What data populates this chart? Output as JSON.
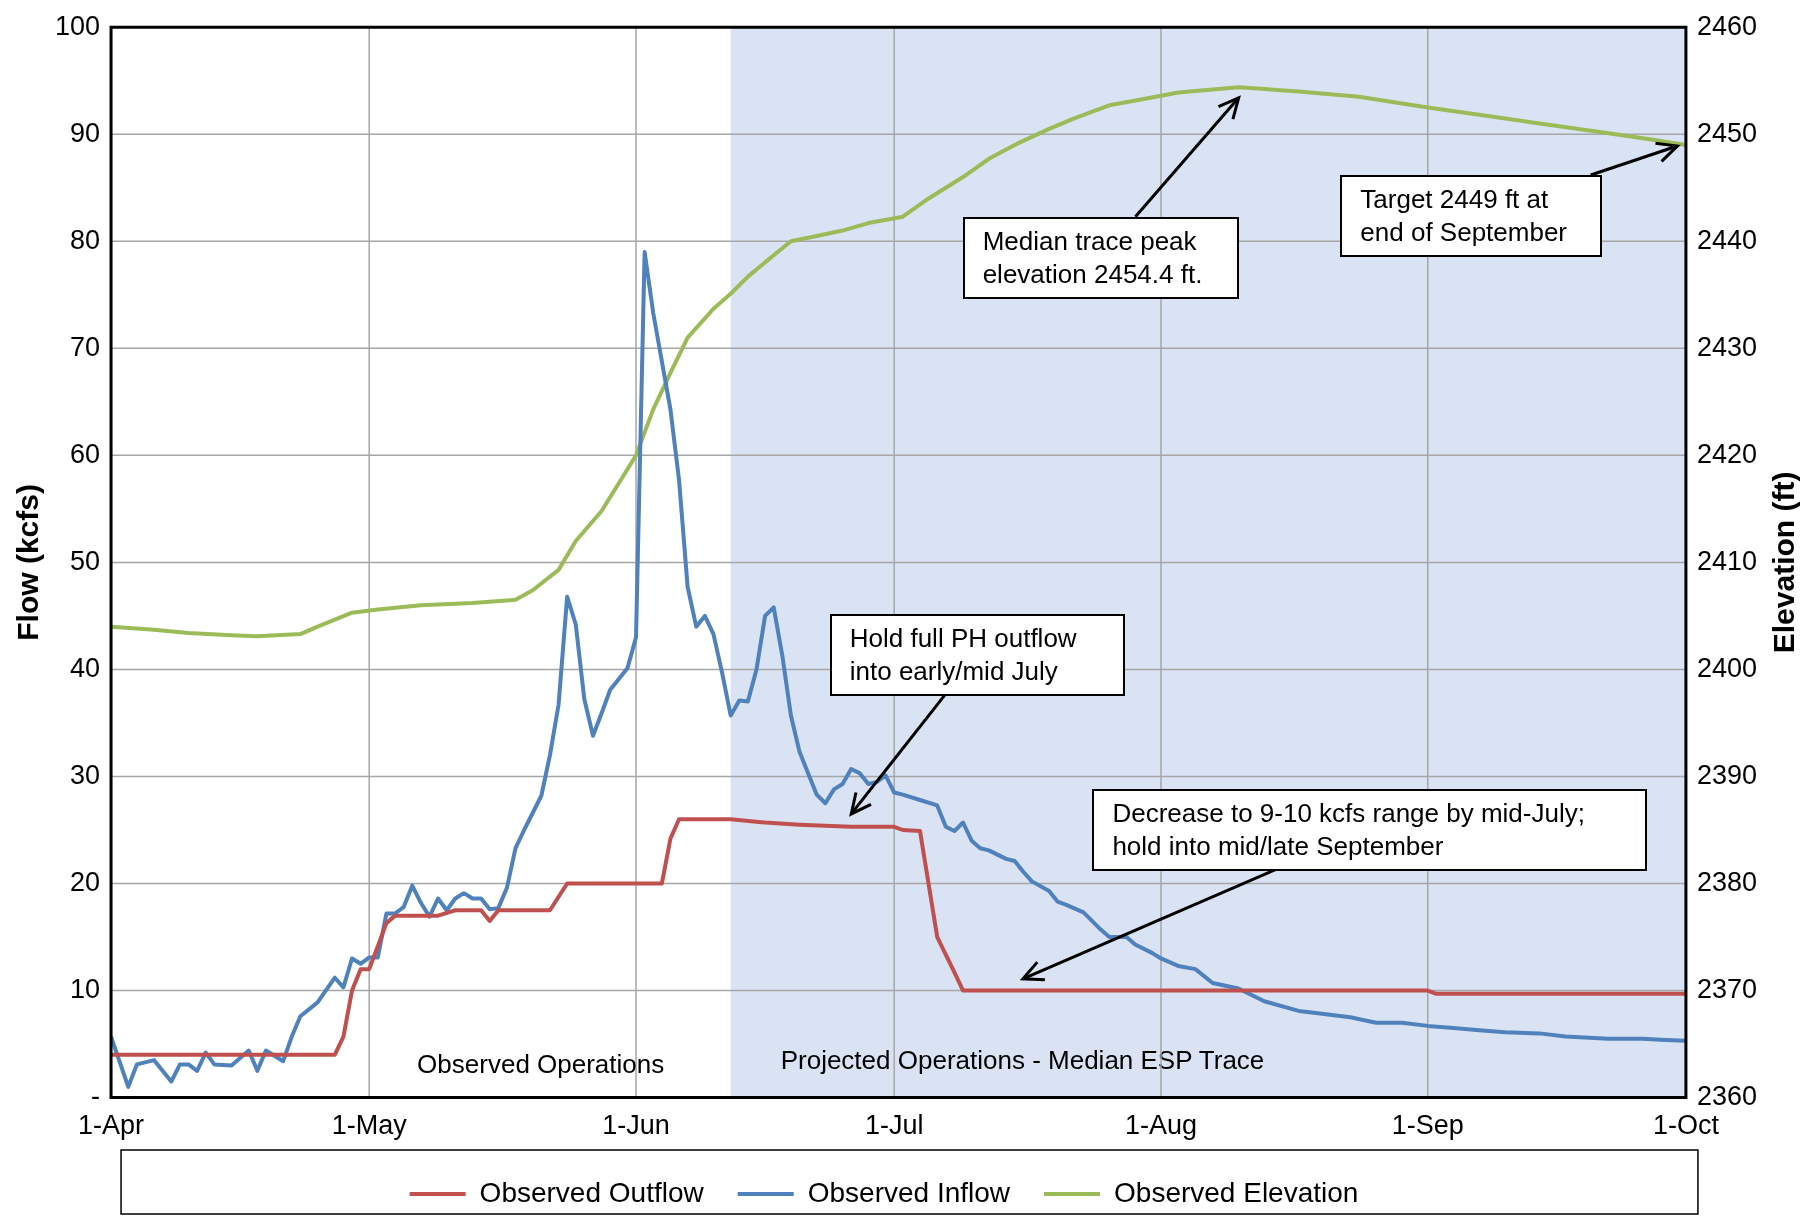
{
  "chart_data": {
    "type": "line",
    "xlabel": null,
    "ylabel": "Flow (kcfs)",
    "y2label": "Elevation (ft)",
    "xlim": [
      "--04-01",
      "--10-01"
    ],
    "xticks": [
      {
        "value": "--04-01",
        "label": "1-Apr"
      },
      {
        "value": "--05-01",
        "label": "1-May"
      },
      {
        "value": "--06-01",
        "label": "1-Jun"
      },
      {
        "value": "--07-01",
        "label": "1-Jul"
      },
      {
        "value": "--08-01",
        "label": "1-Aug"
      },
      {
        "value": "--09-01",
        "label": "1-Sep"
      },
      {
        "value": "--10-01",
        "label": "1-Oct"
      }
    ],
    "ylim": [
      0,
      100
    ],
    "yticks": [
      {
        "value": 0,
        "label": "-"
      },
      10,
      20,
      30,
      40,
      50,
      60,
      70,
      80,
      90,
      100
    ],
    "y2lim": [
      2360,
      2460
    ],
    "y2ticks": [
      2360,
      2370,
      2380,
      2390,
      2400,
      2410,
      2420,
      2430,
      2440,
      2450,
      2460
    ],
    "grid": true,
    "legend": "bottom",
    "line_style": "solid",
    "bands": [
      {
        "axis": "x",
        "from": "--06-12",
        "to": "--10-01",
        "label": "Projected Operations - Median ESP Trace",
        "color": "#dae3f3"
      }
    ],
    "annotations": [
      "Observed Operations",
      "Median trace peak elevation 2454.4 ft.",
      "Hold full PH outflow into early/mid July",
      "Decrease to 9-10 kcfs range by mid-July; hold into mid/late September",
      {
        "text": "Target 2449 ft at end of September",
        "x": "--09-30",
        "y": 88.9
      }
    ],
    "series": [
      {
        "name": "Observed Outflow",
        "color": "#c0504d",
        "x": [
          "--04-01",
          "--04-27",
          "--04-28",
          "--04-29",
          "--04-30",
          "--05-01",
          "--05-03",
          "--05-04",
          "--05-09",
          "--05-11",
          "--05-14",
          "--05-15",
          "--05-16",
          "--05-22",
          "--05-24",
          "--06-04",
          "--06-05",
          "--06-06",
          "--06-12",
          "--06-16",
          "--06-20",
          "--06-26",
          "--07-01",
          "--07-02",
          "--07-04",
          "--07-06",
          "--07-08",
          "--07-09",
          "--09-01",
          "--09-02",
          "--10-01"
        ],
        "values": [
          4,
          4,
          5.7,
          10,
          12,
          12,
          16.3,
          17,
          17,
          17.5,
          17.5,
          16.5,
          17.5,
          17.5,
          20,
          20,
          24.2,
          26,
          26,
          25.7,
          25.5,
          25.3,
          25.3,
          25,
          24.9,
          15,
          11.7,
          10,
          10,
          9.7,
          9.7
        ]
      },
      {
        "name": "Observed Inflow",
        "color": "#4f81bd",
        "x": [
          "--04-01",
          "--04-03",
          "--04-04",
          "--04-06",
          "--04-08",
          "--04-09",
          "--04-10",
          "--04-11",
          "--04-12",
          "--04-13",
          "--04-15",
          "--04-17",
          "--04-18",
          "--04-19",
          "--04-21",
          "--04-22",
          "--04-23",
          "--04-25",
          "--04-27",
          "--04-28",
          "--04-29",
          "--04-30",
          "--05-01",
          "--05-02",
          "--05-03",
          "--05-04",
          "--05-05",
          "--05-06",
          "--05-07",
          "--05-08",
          "--05-09",
          "--05-10",
          "--05-11",
          "--05-12",
          "--05-13",
          "--05-14",
          "--05-15",
          "--05-16",
          "--05-17",
          "--05-18",
          "--05-19",
          "--05-21",
          "--05-22",
          "--05-23",
          "--05-24",
          "--05-25",
          "--05-26",
          "--05-27",
          "--05-28",
          "--05-29",
          "--05-30",
          "--05-31",
          "--06-01",
          "--06-02",
          "--06-03",
          "--06-05",
          "--06-06",
          "--06-07",
          "--06-08",
          "--06-09",
          "--06-10",
          "--06-11",
          "--06-12",
          "--06-13",
          "--06-14",
          "--06-15",
          "--06-16",
          "--06-17",
          "--06-18",
          "--06-19",
          "--06-20",
          "--06-22",
          "--06-23",
          "--06-24",
          "--06-25",
          "--06-26",
          "--06-27",
          "--06-28",
          "--06-29",
          "--06-30",
          "--07-01",
          "--07-02",
          "--07-04",
          "--07-06",
          "--07-07",
          "--07-08",
          "--07-09",
          "--07-10",
          "--07-11",
          "--07-12",
          "--07-14",
          "--07-15",
          "--07-16",
          "--07-17",
          "--07-19",
          "--07-20",
          "--07-21",
          "--07-23",
          "--07-25",
          "--07-26",
          "--07-28",
          "--07-29",
          "--07-31",
          "--08-01",
          "--08-03",
          "--08-05",
          "--08-07",
          "--08-10",
          "--08-13",
          "--08-17",
          "--08-19",
          "--08-23",
          "--08-26",
          "--08-29",
          "--09-01",
          "--09-04",
          "--09-07",
          "--09-10",
          "--09-14",
          "--09-17",
          "--09-22",
          "--09-26",
          "--09-28",
          "--10-01"
        ],
        "values": [
          5.7,
          1.0,
          3.1,
          3.5,
          1.5,
          3.1,
          3.1,
          2.5,
          4.2,
          3.1,
          3.0,
          4.4,
          2.5,
          4.4,
          3.4,
          5.7,
          7.6,
          8.9,
          11.2,
          10.3,
          13.0,
          12.5,
          13.1,
          13.1,
          17.2,
          17.2,
          17.8,
          19.8,
          18.2,
          16.9,
          18.6,
          17.5,
          18.6,
          19.1,
          18.6,
          18.6,
          17.6,
          17.7,
          19.6,
          23.3,
          25.0,
          28.2,
          32.0,
          36.7,
          46.8,
          44.2,
          37.2,
          33.8,
          35.9,
          38.1,
          39.1,
          40.1,
          43.0,
          79.0,
          73.3,
          64.3,
          57.7,
          47.7,
          44.0,
          45.0,
          43.3,
          39.7,
          35.7,
          37.1,
          37.0,
          40.0,
          45.0,
          45.8,
          41.3,
          35.7,
          32.3,
          28.3,
          27.5,
          28.8,
          29.3,
          30.7,
          30.3,
          29.3,
          29.5,
          30.1,
          28.5,
          28.3,
          27.8,
          27.3,
          25.3,
          24.9,
          25.7,
          24.0,
          23.3,
          23.1,
          22.3,
          22.1,
          21.1,
          20.2,
          19.3,
          18.3,
          18.0,
          17.3,
          15.7,
          15.0,
          15.0,
          14.3,
          13.5,
          13.0,
          12.3,
          12.0,
          10.7,
          10.2,
          9.0,
          8.1,
          7.9,
          7.5,
          7.0,
          7.0,
          6.7,
          6.5,
          6.3,
          6.1,
          6.0,
          5.7,
          5.5,
          5.5,
          5.4,
          5.3
        ]
      },
      {
        "name": "Observed Elevation",
        "color": "#9bbb59",
        "axis": "y2",
        "x": [
          "--04-01",
          "--04-06",
          "--04-10",
          "--04-15",
          "--04-18",
          "--04-23",
          "--04-25",
          "--04-29",
          "--05-02",
          "--05-07",
          "--05-13",
          "--05-18",
          "--05-20",
          "--05-23",
          "--05-25",
          "--05-28",
          "--05-30",
          "--06-01",
          "--06-03",
          "--06-05",
          "--06-07",
          "--06-10",
          "--06-12",
          "--06-14",
          "--06-17",
          "--06-19",
          "--06-22",
          "--06-25",
          "--06-28",
          "--07-02",
          "--07-05",
          "--07-09",
          "--07-12",
          "--07-15",
          "--07-19",
          "--07-22",
          "--07-26",
          "--07-30",
          "--08-03",
          "--08-06",
          "--08-10",
          "--08-17",
          "--08-24",
          "--09-01",
          "--09-08",
          "--09-14",
          "--09-21",
          "--09-27",
          "--10-01"
        ],
        "values": [
          2404.0,
          2403.7,
          2403.4,
          2403.2,
          2403.1,
          2403.3,
          2404.0,
          2405.3,
          2405.6,
          2406.0,
          2406.2,
          2406.5,
          2407.4,
          2409.3,
          2412.0,
          2414.8,
          2417.4,
          2420.0,
          2424.3,
          2427.7,
          2431.0,
          2433.7,
          2435.1,
          2436.7,
          2438.7,
          2440.0,
          2440.5,
          2441.0,
          2441.7,
          2442.3,
          2444.0,
          2446.0,
          2447.7,
          2449.0,
          2450.5,
          2451.5,
          2452.7,
          2453.3,
          2453.9,
          2454.1,
          2454.4,
          2454.0,
          2453.5,
          2452.5,
          2451.7,
          2451.0,
          2450.2,
          2449.5,
          2449.0
        ]
      }
    ]
  }
}
